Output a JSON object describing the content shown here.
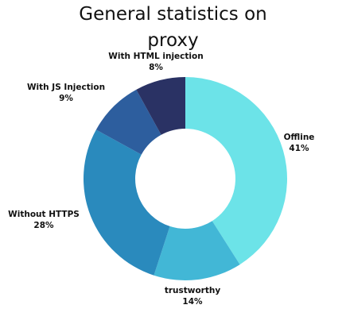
{
  "chart_data": {
    "type": "pie",
    "title_lines": [
      "General statistics on",
      "proxy"
    ],
    "categories": [
      "Offline",
      "trustworthy",
      "Without HTTPS",
      "With JS Injection",
      "With HTML injection"
    ],
    "values": [
      41,
      14,
      28,
      9,
      8
    ],
    "value_labels": [
      "41%",
      "14%",
      "28%",
      "9%",
      "8%"
    ],
    "colors": [
      "#6ce3e8",
      "#42b7d6",
      "#2a8abd",
      "#2d5e9e",
      "#2a3264"
    ],
    "donut": true,
    "legend": "none"
  }
}
